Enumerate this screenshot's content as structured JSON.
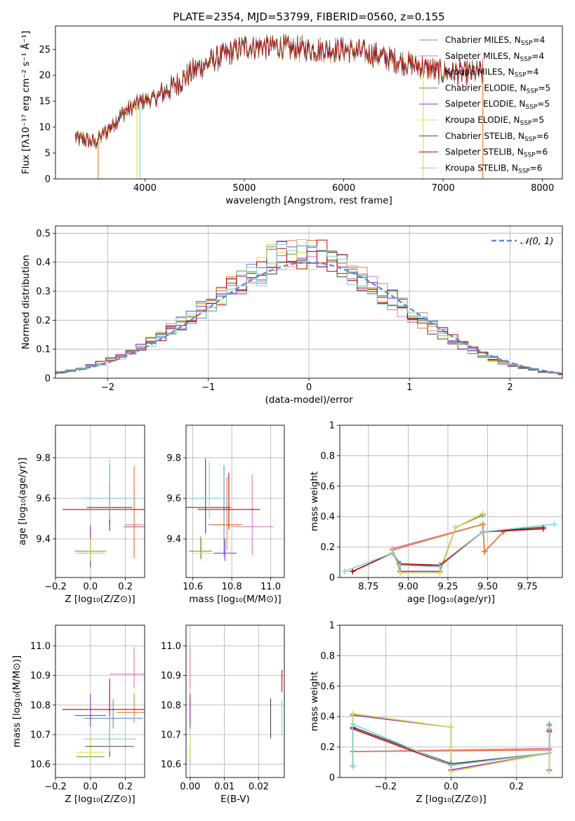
{
  "figure_title": "PLATE=2354, MJD=53799, FIBERID=0560, z=0.155",
  "colors": {
    "Chabrier MILES": "#5b8bd3",
    "Salpeter MILES": "#e377c2",
    "Kroupa MILES": "#f07d2a",
    "Chabrier ELODIE": "#5a9a3c",
    "Salpeter ELODIE": "#9933cc",
    "Kroupa ELODIE": "#dde04a",
    "Chabrier STELIB": "#444444",
    "Salpeter STELIB": "#c00000",
    "Kroupa STELIB": "#7fd3d8",
    "normal": "#5b8bd3"
  },
  "chart_data": [
    {
      "id": "spectrum",
      "type": "line",
      "xlabel": "wavelength [Angstrom, rest frame]",
      "ylabel": "Flux [fλ10⁻¹⁷ erg cm⁻² s⁻¹ Å⁻¹]",
      "xlim": [
        3100,
        8200
      ],
      "ylim": [
        0,
        29.5
      ],
      "xticks": [
        4000,
        5000,
        6000,
        7000,
        8000
      ],
      "yticks": [
        0,
        5,
        10,
        15,
        20,
        25
      ],
      "grid": false,
      "legend_position": "top-right",
      "legend": [
        {
          "label": "Chabrier MILES, N",
          "sub": "SSP",
          "tail": "=4"
        },
        {
          "label": "Salpeter MILES, N",
          "sub": "SSP",
          "tail": "=4"
        },
        {
          "label": "Kroupa MILES, N",
          "sub": "SSP",
          "tail": "=4"
        },
        {
          "label": "Chabrier ELODIE, N",
          "sub": "SSP",
          "tail": "=5"
        },
        {
          "label": "Salpeter ELODIE, N",
          "sub": "SSP",
          "tail": "=5"
        },
        {
          "label": "Kroupa ELODIE, N",
          "sub": "SSP",
          "tail": "=5"
        },
        {
          "label": "Chabrier STELIB, N",
          "sub": "SSP",
          "tail": "=6"
        },
        {
          "label": "Salpeter STELIB, N",
          "sub": "SSP",
          "tail": "=6"
        },
        {
          "label": "Kroupa STELIB, N",
          "sub": "SSP",
          "tail": "=6"
        }
      ],
      "continuum": {
        "x": [
          3300,
          3500,
          3650,
          3800,
          3950,
          4100,
          4300,
          4500,
          4700,
          5000,
          5300,
          5600,
          6000,
          6300,
          6600,
          6800,
          7000,
          7200,
          7400
        ],
        "y": [
          8,
          7,
          10,
          13,
          15,
          15.5,
          18,
          21,
          23,
          25.5,
          25.5,
          25,
          25,
          24,
          22.5,
          21.5,
          20.5,
          20.5,
          20.5
        ]
      },
      "dropouts": [
        3530,
        3920,
        3950,
        6800,
        7400
      ]
    },
    {
      "id": "residuals",
      "type": "area",
      "xlabel": "(data-model)/error",
      "ylabel": "Normed distribution",
      "xlim": [
        -2.52,
        2.52
      ],
      "ylim": [
        0,
        0.525
      ],
      "xticks": [
        -2,
        -1,
        0,
        1,
        2
      ],
      "xtick_labels": [
        "−2",
        "−1",
        "0",
        "1",
        "2"
      ],
      "yticks": [
        0,
        0.1,
        0.2,
        0.3,
        0.4,
        0.5
      ],
      "grid": true,
      "legend_position": "top-right",
      "normal_label": "𝒩(0, 1)",
      "bin_width": 0.1
    },
    {
      "id": "age-vs-Z",
      "type": "scatter",
      "xlabel": "Z [log₁₀(Z/Z⊙)]",
      "ylabel": "age  [log₁₀(age/yr)]",
      "xlim": [
        -0.2,
        0.31
      ],
      "ylim": [
        9.21,
        9.96
      ],
      "xticks": [
        -0.2,
        0,
        0.2
      ],
      "xtick_labels": [
        "−0.2",
        "0.0",
        "0.2"
      ],
      "yticks": [
        9.4,
        9.6,
        9.8
      ],
      "ytick_labels": [
        "9.4",
        "9.6",
        "9.8"
      ],
      "grid": true,
      "points": [
        {
          "model": "Chabrier MILES",
          "x": 0.25,
          "xerr": 0.06,
          "y": 9.46,
          "yerr": 0.45
        },
        {
          "model": "Salpeter MILES",
          "x": 0.25,
          "xerr": 0.05,
          "y": 9.47,
          "yerr": 0.45
        },
        {
          "model": "Kroupa MILES",
          "x": 0.25,
          "xerr": 0.05,
          "y": 9.46,
          "yerr": 0.44
        },
        {
          "model": "Chabrier ELODIE",
          "x": 0.0,
          "xerr": 0.09,
          "y": 9.34,
          "yerr": 0.2
        },
        {
          "model": "Salpeter ELODIE",
          "x": 0.0,
          "xerr": 0.07,
          "y": 9.33,
          "yerr": 0.2
        },
        {
          "model": "Kroupa ELODIE",
          "x": 0.0,
          "xerr": 0.09,
          "y": 9.33,
          "yerr": 0.11
        },
        {
          "model": "Chabrier STELIB",
          "x": 0.11,
          "xerr": 0.13,
          "y": 9.555,
          "yerr": 0.33
        },
        {
          "model": "Salpeter STELIB",
          "x": 0.11,
          "xerr": 0.27,
          "y": 9.545,
          "yerr": 0.2
        },
        {
          "model": "Kroupa STELIB",
          "x": 0.11,
          "xerr": 0.15,
          "y": 9.6,
          "yerr": 0.3
        }
      ]
    },
    {
      "id": "age-vs-mass",
      "type": "scatter",
      "xlabel": "mass [log₁₀(M/M⊙)]",
      "ylabel": "",
      "xlim": [
        10.565,
        11.07
      ],
      "ylim": [
        9.21,
        9.96
      ],
      "xticks": [
        10.6,
        10.8,
        11.0
      ],
      "xtick_labels": [
        "10.6",
        "10.8",
        "11.0"
      ],
      "yticks": [
        9.4,
        9.6,
        9.8
      ],
      "ytick_labels": [
        "9.4",
        "9.6",
        "9.8"
      ],
      "grid": true,
      "points": [
        {
          "model": "Chabrier MILES",
          "x": 10.76,
          "xerr": 0.08,
          "y": 9.47,
          "yerr": 0.45
        },
        {
          "model": "Salpeter MILES",
          "x": 10.905,
          "xerr": 0.11,
          "y": 9.46,
          "yerr": 0.4
        },
        {
          "model": "Kroupa MILES",
          "x": 10.775,
          "xerr": 0.08,
          "y": 9.47,
          "yerr": 0.36
        },
        {
          "model": "Chabrier ELODIE",
          "x": 10.64,
          "xerr": 0.06,
          "y": 9.34,
          "yerr": 0.11
        },
        {
          "model": "Salpeter ELODIE",
          "x": 10.765,
          "xerr": 0.06,
          "y": 9.33,
          "yerr": 0.11
        },
        {
          "model": "Kroupa ELODIE",
          "x": 10.645,
          "xerr": 0.05,
          "y": 9.33,
          "yerr": 0.11
        },
        {
          "model": "Chabrier STELIB",
          "x": 10.665,
          "xerr": 0.13,
          "y": 9.555,
          "yerr": 0.37
        },
        {
          "model": "Salpeter STELIB",
          "x": 10.785,
          "xerr": 0.16,
          "y": 9.545,
          "yerr": 0.28
        },
        {
          "model": "Kroupa STELIB",
          "x": 10.685,
          "xerr": 0.11,
          "y": 9.6,
          "yerr": 0.28
        }
      ]
    },
    {
      "id": "weight-vs-age",
      "type": "line",
      "xlabel": "age  [log₁₀(age/yr)]",
      "ylabel": "mass weight",
      "xlim": [
        8.57,
        9.97
      ],
      "ylim": [
        0,
        1.0
      ],
      "xticks": [
        8.75,
        9.0,
        9.25,
        9.5,
        9.75
      ],
      "xtick_labels": [
        "8.75",
        "9.00",
        "9.25",
        "9.50",
        "9.75"
      ],
      "yticks": [
        0,
        0.2,
        0.4,
        0.6,
        0.8,
        1.0
      ],
      "grid": true,
      "series": [
        {
          "model": "Chabrier MILES",
          "x": [
            8.9,
            9.47,
            9.48,
            9.6
          ],
          "y": [
            0.18,
            0.35,
            0.17,
            0.3
          ]
        },
        {
          "model": "Salpeter MILES",
          "x": [
            8.9,
            9.47,
            9.48,
            9.6
          ],
          "y": [
            0.19,
            0.35,
            0.17,
            0.3
          ]
        },
        {
          "model": "Kroupa MILES",
          "x": [
            8.9,
            9.47,
            9.48,
            9.6
          ],
          "y": [
            0.18,
            0.35,
            0.17,
            0.3
          ]
        },
        {
          "model": "Chabrier ELODIE",
          "x": [
            8.9,
            8.95,
            9.2,
            9.3,
            9.47
          ],
          "y": [
            0.18,
            0.04,
            0.04,
            0.33,
            0.41
          ]
        },
        {
          "model": "Salpeter ELODIE",
          "x": [
            8.9,
            8.95,
            9.2,
            9.3,
            9.47
          ],
          "y": [
            0.18,
            0.04,
            0.04,
            0.33,
            0.42
          ]
        },
        {
          "model": "Kroupa ELODIE",
          "x": [
            8.9,
            8.95,
            9.2,
            9.3,
            9.47
          ],
          "y": [
            0.18,
            0.03,
            0.03,
            0.33,
            0.42
          ]
        },
        {
          "model": "Chabrier STELIB",
          "x": [
            8.65,
            8.9,
            8.95,
            9.2,
            9.47,
            9.85
          ],
          "y": [
            0.04,
            0.16,
            0.08,
            0.08,
            0.3,
            0.33
          ]
        },
        {
          "model": "Salpeter STELIB",
          "x": [
            8.65,
            8.9,
            8.95,
            9.2,
            9.47,
            9.85
          ],
          "y": [
            0.04,
            0.16,
            0.09,
            0.08,
            0.3,
            0.32
          ]
        },
        {
          "model": "Kroupa STELIB",
          "x": [
            8.6,
            8.9,
            8.95,
            9.2,
            9.47,
            9.92
          ],
          "y": [
            0.04,
            0.16,
            0.08,
            0.07,
            0.3,
            0.35
          ]
        }
      ]
    },
    {
      "id": "mass-vs-Z",
      "type": "scatter",
      "xlabel": "Z [log₁₀(Z/Z⊙)]",
      "ylabel": "mass [log₁₀(M/M⊙)]",
      "xlim": [
        -0.2,
        0.31
      ],
      "ylim": [
        10.555,
        11.07
      ],
      "xticks": [
        -0.2,
        0,
        0.2
      ],
      "xtick_labels": [
        "−0.2",
        "0.0",
        "0.2"
      ],
      "yticks": [
        10.6,
        10.7,
        10.8,
        10.9,
        11.0
      ],
      "ytick_labels": [
        "10.6",
        "10.7",
        "10.8",
        "10.9",
        "11.0"
      ],
      "grid": true,
      "points": [
        {
          "model": "Chabrier MILES",
          "x": 0.13,
          "xerr": 0.17,
          "y": 10.755,
          "yerr": 0.1
        },
        {
          "model": "Salpeter MILES",
          "x": 0.25,
          "xerr": 0.14,
          "y": 10.905,
          "yerr": 0.14
        },
        {
          "model": "Kroupa MILES",
          "x": 0.25,
          "xerr": 0.1,
          "y": 10.775,
          "yerr": 0.1
        },
        {
          "model": "Chabrier ELODIE",
          "x": 0.0,
          "xerr": 0.08,
          "y": 10.625,
          "yerr": 0.05
        },
        {
          "model": "Salpeter ELODIE",
          "x": 0.0,
          "xerr": 0.09,
          "y": 10.765,
          "yerr": 0.11
        },
        {
          "model": "Kroupa ELODIE",
          "x": 0.0,
          "xerr": 0.08,
          "y": 10.64,
          "yerr": 0.09
        },
        {
          "model": "Chabrier STELIB",
          "x": 0.11,
          "xerr": 0.14,
          "y": 10.66,
          "yerr": 0.1
        },
        {
          "model": "Salpeter STELIB",
          "x": 0.11,
          "xerr": 0.27,
          "y": 10.785,
          "yerr": 0.16
        },
        {
          "model": "Kroupa STELIB",
          "x": 0.11,
          "xerr": 0.15,
          "y": 10.685,
          "yerr": 0.12
        }
      ]
    },
    {
      "id": "mass-vs-EBV",
      "type": "scatter",
      "xlabel": "E(B-V)",
      "ylabel": "",
      "xlim": [
        -0.0012,
        0.0275
      ],
      "ylim": [
        10.555,
        11.07
      ],
      "xticks": [
        0.0,
        0.01,
        0.02
      ],
      "xtick_labels": [
        "0.00",
        "0.01",
        "0.02"
      ],
      "yticks": [
        10.6,
        10.7,
        10.8,
        10.9,
        11.0
      ],
      "ytick_labels": [
        "10.6",
        "10.7",
        "10.8",
        "10.9",
        "11.0"
      ],
      "grid": true,
      "points": [
        {
          "model": "Chabrier MILES",
          "x": 0.0,
          "xerr": 0,
          "y": 10.755,
          "yerr": 0.1
        },
        {
          "model": "Salpeter MILES",
          "x": 0.0,
          "xerr": 0,
          "y": 10.905,
          "yerr": 0.14
        },
        {
          "model": "Kroupa MILES",
          "x": 0.0,
          "xerr": 0,
          "y": 10.775,
          "yerr": 0.1
        },
        {
          "model": "Chabrier ELODIE",
          "x": 0.0,
          "xerr": 0,
          "y": 10.625,
          "yerr": 0.05
        },
        {
          "model": "Salpeter ELODIE",
          "x": 0.0,
          "xerr": 0,
          "y": 10.765,
          "yerr": 0.11
        },
        {
          "model": "Kroupa ELODIE",
          "x": 0.0,
          "xerr": 0,
          "y": 10.64,
          "yerr": 0.09
        },
        {
          "model": "Chabrier STELIB",
          "x": 0.0235,
          "xerr": 0,
          "y": 10.735,
          "yerr": 0.135
        },
        {
          "model": "Salpeter STELIB",
          "x": 0.0268,
          "xerr": 0,
          "y": 10.87,
          "yerr": 0.075
        },
        {
          "model": "Kroupa STELIB",
          "x": 0.0268,
          "xerr": 0,
          "y": 10.74,
          "yerr": 0.12
        }
      ]
    },
    {
      "id": "weight-vs-Z",
      "type": "line",
      "xlabel": "Z [log₁₀(Z/Z⊙)]",
      "ylabel": "mass weight",
      "xlim": [
        -0.34,
        0.34
      ],
      "ylim": [
        0,
        1.0
      ],
      "xticks": [
        -0.2,
        0.0,
        0.2
      ],
      "xtick_labels": [
        "−0.2",
        "0.0",
        "0.2"
      ],
      "yticks": [
        0,
        0.2,
        0.4,
        0.6,
        0.8,
        1.0
      ],
      "grid": true,
      "series": [
        {
          "model": "Chabrier MILES",
          "x": [
            -0.3,
            0.3,
            0.3
          ],
          "y": [
            0.17,
            0.19,
            0.35
          ]
        },
        {
          "model": "Salpeter MILES",
          "x": [
            -0.3,
            0.3,
            0.3
          ],
          "y": [
            0.17,
            0.19,
            0.34
          ]
        },
        {
          "model": "Kroupa MILES",
          "x": [
            -0.3,
            0.3,
            0.3
          ],
          "y": [
            0.17,
            0.18,
            0.34
          ]
        },
        {
          "model": "Chabrier ELODIE",
          "x": [
            -0.3,
            -0.3,
            0.0,
            0.0,
            0.3,
            0.3
          ],
          "y": [
            0.08,
            0.42,
            0.33,
            0.04,
            0.16,
            0.04
          ]
        },
        {
          "model": "Salpeter ELODIE",
          "x": [
            -0.3,
            -0.3,
            0.0,
            0.0,
            0.3,
            0.3
          ],
          "y": [
            0.08,
            0.41,
            0.33,
            0.05,
            0.16,
            0.05
          ]
        },
        {
          "model": "Kroupa ELODIE",
          "x": [
            -0.3,
            -0.3,
            0.0,
            0.0,
            0.3,
            0.3
          ],
          "y": [
            0.08,
            0.42,
            0.33,
            0.04,
            0.16,
            0.04
          ]
        },
        {
          "model": "Chabrier STELIB",
          "x": [
            -0.3,
            0.0,
            0.3,
            0.3
          ],
          "y": [
            0.33,
            0.09,
            0.16,
            0.3
          ]
        },
        {
          "model": "Salpeter STELIB",
          "x": [
            -0.3,
            0.0,
            0.3,
            0.3
          ],
          "y": [
            0.32,
            0.08,
            0.16,
            0.31
          ]
        },
        {
          "model": "Kroupa STELIB",
          "x": [
            -0.3,
            -0.3,
            0.0,
            0.3,
            0.3
          ],
          "y": [
            0.07,
            0.35,
            0.08,
            0.16,
            0.32
          ]
        }
      ]
    }
  ]
}
